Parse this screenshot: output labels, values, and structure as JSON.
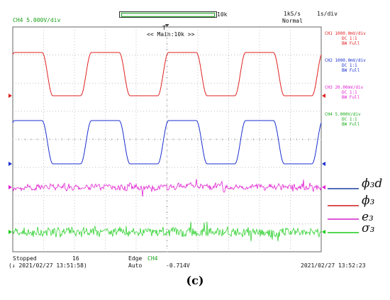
{
  "header": {
    "ch_scale": "CH4  5.000V/div",
    "memory": "10k",
    "sample_rate": "1kS/s",
    "time_div": "1s/div",
    "mode": "Normal",
    "main": "<< Main:10k >>",
    "trig_marker": "T"
  },
  "channels": [
    {
      "id": "CH1",
      "lines": [
        "CH1  1000.0mV/div",
        "DC  1:1",
        "BW Full"
      ],
      "color": "#e02020"
    },
    {
      "id": "CH2",
      "lines": [
        "CH2  1000.0mV/div",
        "DC  1:1",
        "BW Full"
      ],
      "color": "#1a2fd0"
    },
    {
      "id": "CH3",
      "lines": [
        "CH3  20.00mV/div",
        "DC  1:1",
        "BW Full"
      ],
      "color": "#e020d0"
    },
    {
      "id": "CH4",
      "lines": [
        "CH4  5.000V/div",
        "DC  1:1",
        "BW Full"
      ],
      "color": "#19cc19"
    }
  ],
  "footer": {
    "status": "Stopped",
    "count": "16",
    "start_time": "(↓ 2021/02/27 13:51:58)",
    "trig_type": "Edge",
    "trig_ch": "CH4",
    "trig_mode": "Auto",
    "trig_level": "-0.714V",
    "end_time": "2021/02/27 13:52:23"
  },
  "legend": [
    {
      "label": "ϕ₃d",
      "color": "#1a3fa0"
    },
    {
      "label": "ϕ₃",
      "color": "#d01818"
    },
    {
      "label": "e₃",
      "color": "#d020c8"
    },
    {
      "label": "σ₃",
      "color": "#19cc19"
    }
  ],
  "caption": "(c)",
  "chart_data": {
    "type": "line",
    "x_unit": "s/div",
    "x_divisions": 10,
    "y_divisions": 8,
    "grid": true,
    "series": [
      {
        "name": "ϕ₃d",
        "channel": "CH2",
        "kind": "square",
        "periods": 4,
        "color": "#1a2fd0"
      },
      {
        "name": "ϕ₃",
        "channel": "CH1",
        "kind": "square",
        "periods": 4,
        "color": "#e02020"
      },
      {
        "name": "e₃",
        "channel": "CH3",
        "kind": "noise",
        "color": "#e020d0"
      },
      {
        "name": "σ₃",
        "channel": "CH4",
        "kind": "noise",
        "color": "#19cc19"
      }
    ]
  }
}
